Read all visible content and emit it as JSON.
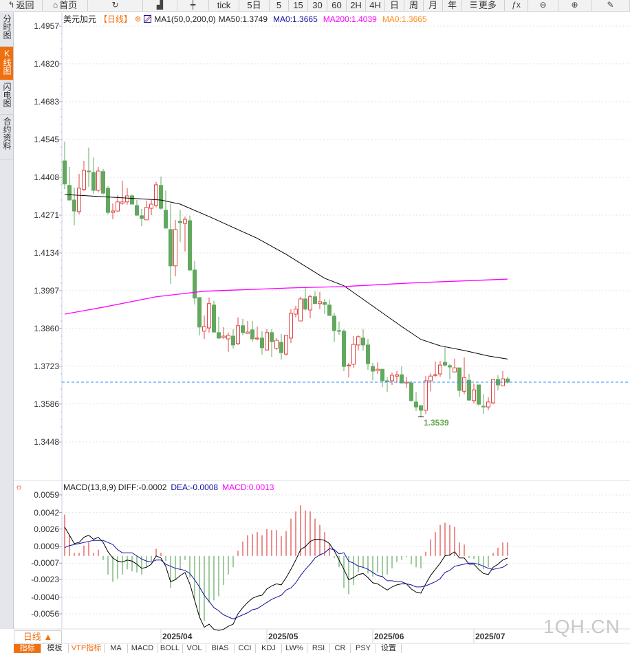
{
  "toolbar": {
    "items": [
      {
        "label": "返回",
        "icon": "back-arrow-icon",
        "glyph": "↰"
      },
      {
        "label": "首页",
        "icon": "home-icon",
        "glyph": "⌂"
      },
      {
        "label": "",
        "icon": "refresh-icon",
        "glyph": "↻"
      },
      {
        "label": "",
        "icon": "bar-chart-icon",
        "glyph": "▟"
      },
      {
        "label": "",
        "icon": "candlestick-icon",
        "glyph": "┿"
      },
      {
        "label": "tick",
        "icon": "",
        "glyph": ""
      },
      {
        "label": "5日",
        "icon": "",
        "glyph": ""
      },
      {
        "label": "5",
        "icon": "",
        "glyph": ""
      },
      {
        "label": "15",
        "icon": "",
        "glyph": ""
      },
      {
        "label": "30",
        "icon": "",
        "glyph": ""
      },
      {
        "label": "60",
        "icon": "",
        "glyph": ""
      },
      {
        "label": "2H",
        "icon": "",
        "glyph": ""
      },
      {
        "label": "4H",
        "icon": "",
        "glyph": ""
      },
      {
        "label": "日",
        "icon": "",
        "glyph": ""
      },
      {
        "label": "周",
        "icon": "",
        "glyph": ""
      },
      {
        "label": "月",
        "icon": "",
        "glyph": ""
      },
      {
        "label": "年",
        "icon": "",
        "glyph": ""
      },
      {
        "label": "更多",
        "icon": "menu-icon",
        "glyph": "☰"
      },
      {
        "label": "",
        "icon": "function-icon",
        "glyph": "ƒx"
      },
      {
        "label": "",
        "icon": "zoom-out-icon",
        "glyph": "⊖"
      },
      {
        "label": "",
        "icon": "zoom-in-icon",
        "glyph": "⊕"
      },
      {
        "label": "",
        "icon": "pen-icon",
        "glyph": "✎"
      }
    ]
  },
  "sidebar": {
    "items": [
      {
        "label": "分时图",
        "active": false
      },
      {
        "label": "K线图",
        "active": true
      },
      {
        "label": "闪电图",
        "active": false
      },
      {
        "label": "合约资料",
        "active": false
      }
    ]
  },
  "legend": {
    "symbol": "美元加元",
    "period": "【日线】",
    "toggle_glyph": "⊕",
    "indicator": "MA1(50,0,200,0)",
    "ma50": "MA50:1.3749",
    "ma0a": "MA0:1.3665",
    "ma200": "MA200:1.4039",
    "ma0b": "MA0:1.3665"
  },
  "macd_legend": {
    "name": "MACD(13,8,9)",
    "diff": "DIFF:-0.0002",
    "dea": "DEA:-0.0008",
    "macd": "MACD:0.0013"
  },
  "colors": {
    "up": "#e04444",
    "down": "#62a85e",
    "ma50": "#000000",
    "ma200": "#ff00ff",
    "ma0": "#1e90ff",
    "dea": "#1010a0",
    "macd_label": "#ff00ff",
    "accent": "#f07010"
  },
  "period_selector": "日线 ▲",
  "watermark": "1QH.CN",
  "bottom_tabs": [
    "指标",
    "模板",
    "VTP指标",
    "MA",
    "MACD",
    "BOLL",
    "VOL",
    "BIAS",
    "CCI",
    "KDJ",
    "LW%",
    "RSI",
    "CR",
    "PSY",
    "设置"
  ],
  "chart_data": [
    {
      "type": "candlestick",
      "title": "美元加元 日线",
      "y_ticks": [
        "1.4957",
        "1.4820",
        "1.4683",
        "1.4545",
        "1.4408",
        "1.4271",
        "1.4134",
        "1.3997",
        "1.3860",
        "1.3723",
        "1.3586",
        "1.3448"
      ],
      "ylim": [
        1.3448,
        1.4957
      ],
      "x_labels": [
        {
          "index": 20,
          "label": "2025/04"
        },
        {
          "index": 42,
          "label": "2025/05"
        },
        {
          "index": 64,
          "label": "2025/06"
        },
        {
          "index": 85,
          "label": "2025/07"
        }
      ],
      "low_marker": {
        "index": 74,
        "value": "1.3539"
      },
      "ma0_line": 1.3665,
      "ohlc": [
        [
          1.4468,
          1.4538,
          1.4366,
          1.4384
        ],
        [
          1.4379,
          1.4446,
          1.4324,
          1.4326
        ],
        [
          1.4326,
          1.4371,
          1.4234,
          1.4286
        ],
        [
          1.4284,
          1.4421,
          1.4274,
          1.4369
        ],
        [
          1.4364,
          1.4468,
          1.4359,
          1.4434
        ],
        [
          1.4431,
          1.4516,
          1.4374,
          1.4429
        ],
        [
          1.4426,
          1.4481,
          1.4349,
          1.4361
        ],
        [
          1.4361,
          1.4446,
          1.4354,
          1.4431
        ],
        [
          1.4429,
          1.4439,
          1.4346,
          1.4351
        ],
        [
          1.4369,
          1.4376,
          1.4274,
          1.4281
        ],
        [
          1.4281,
          1.4314,
          1.4256,
          1.4286
        ],
        [
          1.4286,
          1.4344,
          1.4284,
          1.4319
        ],
        [
          1.4314,
          1.4396,
          1.4309,
          1.4319
        ],
        [
          1.4319,
          1.4369,
          1.4309,
          1.4341
        ],
        [
          1.4341,
          1.4346,
          1.4311,
          1.4311
        ],
        [
          1.4306,
          1.4326,
          1.4269,
          1.4271
        ],
        [
          1.4269,
          1.4294,
          1.4231,
          1.4259
        ],
        [
          1.4254,
          1.4324,
          1.4254,
          1.4299
        ],
        [
          1.4296,
          1.4326,
          1.4271,
          1.4311
        ],
        [
          1.4306,
          1.4391,
          1.4299,
          1.4381
        ],
        [
          1.4379,
          1.4411,
          1.4291,
          1.4296
        ],
        [
          1.4289,
          1.4361,
          1.4224,
          1.4224
        ],
        [
          1.4219,
          1.4314,
          1.4022,
          1.4087
        ],
        [
          1.4087,
          1.4254,
          1.4049,
          1.4219
        ],
        [
          1.4249,
          1.4291,
          1.4174,
          1.4244
        ],
        [
          1.4241,
          1.4266,
          1.4139,
          1.4256
        ],
        [
          1.4251,
          1.4269,
          1.4069,
          1.4072
        ],
        [
          1.4072,
          1.4104,
          1.3947,
          1.397
        ],
        [
          1.3972,
          1.3972,
          1.3835,
          1.3865
        ],
        [
          1.385,
          1.3907,
          1.3822,
          1.3867
        ],
        [
          1.3862,
          1.3972,
          1.3845,
          1.395
        ],
        [
          1.3945,
          1.396,
          1.3845,
          1.3847
        ],
        [
          1.3845,
          1.3902,
          1.3822,
          1.3825
        ],
        [
          1.3827,
          1.3865,
          1.3822,
          1.3832
        ],
        [
          1.3822,
          1.3845,
          1.3775,
          1.3835
        ],
        [
          1.3832,
          1.3857,
          1.3787,
          1.38
        ],
        [
          1.3805,
          1.39,
          1.38,
          1.387
        ],
        [
          1.387,
          1.3895,
          1.3835,
          1.3845
        ],
        [
          1.3842,
          1.3887,
          1.3842,
          1.3847
        ],
        [
          1.3855,
          1.3887,
          1.3812,
          1.3822
        ],
        [
          1.3822,
          1.3867,
          1.3817,
          1.3825
        ],
        [
          1.3825,
          1.385,
          1.3765,
          1.379
        ],
        [
          1.3782,
          1.3857,
          1.378,
          1.3845
        ],
        [
          1.3845,
          1.3857,
          1.3757,
          1.3812
        ],
        [
          1.3787,
          1.3825,
          1.3782,
          1.3817
        ],
        [
          1.381,
          1.384,
          1.3747,
          1.3772
        ],
        [
          1.3767,
          1.3835,
          1.3762,
          1.3835
        ],
        [
          1.3825,
          1.393,
          1.3807,
          1.3915
        ],
        [
          1.3912,
          1.3942,
          1.39,
          1.393
        ],
        [
          1.3887,
          1.3975,
          1.3887,
          1.3967
        ],
        [
          1.3967,
          1.4012,
          1.3925,
          1.393
        ],
        [
          1.3927,
          1.3982,
          1.3897,
          1.3975
        ],
        [
          1.3975,
          1.3995,
          1.395,
          1.395
        ],
        [
          1.395,
          1.3992,
          1.393,
          1.3957
        ],
        [
          1.3955,
          1.3967,
          1.3912,
          1.3947
        ],
        [
          1.3945,
          1.3965,
          1.3905,
          1.3907
        ],
        [
          1.3905,
          1.3917,
          1.381,
          1.3852
        ],
        [
          1.3852,
          1.3885,
          1.3837,
          1.385
        ],
        [
          1.385,
          1.3857,
          1.3705,
          1.3722
        ],
        [
          1.3725,
          1.3735,
          1.3682,
          1.3727
        ],
        [
          1.373,
          1.3832,
          1.3717,
          1.3802
        ],
        [
          1.38,
          1.3835,
          1.378,
          1.383
        ],
        [
          1.3825,
          1.3857,
          1.378,
          1.38
        ],
        [
          1.38,
          1.3822,
          1.371,
          1.3732
        ],
        [
          1.3722,
          1.3735,
          1.3672,
          1.3705
        ],
        [
          1.3707,
          1.3737,
          1.3695,
          1.3712
        ],
        [
          1.3712,
          1.3712,
          1.3647,
          1.367
        ],
        [
          1.367,
          1.3682,
          1.363,
          1.3667
        ],
        [
          1.367,
          1.37,
          1.3655,
          1.369
        ],
        [
          1.3687,
          1.3705,
          1.3662,
          1.3692
        ],
        [
          1.3692,
          1.3722,
          1.3662,
          1.3662
        ],
        [
          1.3662,
          1.3685,
          1.3645,
          1.3665
        ],
        [
          1.3662,
          1.367,
          1.3595,
          1.3598
        ],
        [
          1.3593,
          1.363,
          1.356,
          1.3575
        ],
        [
          1.358,
          1.358,
          1.3539,
          1.3563
        ],
        [
          1.3563,
          1.3687,
          1.355,
          1.367
        ],
        [
          1.367,
          1.3697,
          1.3632,
          1.3687
        ],
        [
          1.369,
          1.374,
          1.3685,
          1.3692
        ],
        [
          1.3695,
          1.3742,
          1.3685,
          1.3727
        ],
        [
          1.3737,
          1.3792,
          1.3722,
          1.3727
        ],
        [
          1.3725,
          1.3732,
          1.3675,
          1.372
        ],
        [
          1.3702,
          1.375,
          1.3702,
          1.3717
        ],
        [
          1.3717,
          1.3717,
          1.3612,
          1.3635
        ],
        [
          1.3632,
          1.3755,
          1.3622,
          1.3682
        ],
        [
          1.3672,
          1.3695,
          1.3598,
          1.36
        ],
        [
          1.3598,
          1.366,
          1.3588,
          1.3637
        ],
        [
          1.3655,
          1.3655,
          1.358,
          1.3585
        ],
        [
          1.3578,
          1.3622,
          1.355,
          1.3575
        ],
        [
          1.3575,
          1.361,
          1.3563,
          1.3593
        ],
        [
          1.359,
          1.3675,
          1.3585,
          1.3675
        ],
        [
          1.3675,
          1.369,
          1.3635,
          1.3655
        ],
        [
          1.3652,
          1.3705,
          1.365,
          1.3677
        ],
        [
          1.3677,
          1.3685,
          1.366,
          1.3665
        ]
      ],
      "ma50": [
        [
          0,
          1.4346
        ],
        [
          20,
          1.4326
        ],
        [
          24,
          1.4311
        ],
        [
          30,
          1.4266
        ],
        [
          40,
          1.4187
        ],
        [
          46,
          1.4129
        ],
        [
          54,
          1.4042
        ],
        [
          58,
          1.4015
        ],
        [
          70,
          1.3867
        ],
        [
          74,
          1.382
        ],
        [
          78,
          1.3797
        ],
        [
          83,
          1.378
        ],
        [
          88,
          1.376
        ],
        [
          92,
          1.3749
        ]
      ],
      "ma200": [
        [
          0,
          1.3912
        ],
        [
          8,
          1.3937
        ],
        [
          19,
          1.3975
        ],
        [
          29,
          1.3995
        ],
        [
          47,
          1.4007
        ],
        [
          58,
          1.4012
        ],
        [
          72,
          1.4025
        ],
        [
          92,
          1.4039
        ]
      ]
    },
    {
      "type": "macd",
      "y_ticks": [
        "0.0059",
        "0.0042",
        "0.0026",
        "0.0009",
        "-0.0007",
        "-0.0023",
        "-0.0040",
        "-0.0056"
      ],
      "ylim": [
        -0.0056,
        0.0059
      ],
      "diff": [
        0.0028,
        0.002,
        0.0012,
        0.0013,
        0.0018,
        0.002,
        0.0016,
        0.0018,
        0.0013,
        0.0004,
        -0.0002,
        -0.0005,
        -0.0006,
        -0.0004,
        -0.0005,
        -0.0008,
        -0.0012,
        -0.0011,
        -0.0008,
        0.0,
        -0.0002,
        -0.001,
        -0.0025,
        -0.0023,
        -0.0019,
        -0.0016,
        -0.0027,
        -0.0043,
        -0.0059,
        -0.0069,
        -0.0066,
        -0.0071,
        -0.0072,
        -0.0071,
        -0.0068,
        -0.0066,
        -0.0056,
        -0.005,
        -0.0045,
        -0.0041,
        -0.0039,
        -0.0038,
        -0.0032,
        -0.0029,
        -0.0027,
        -0.0028,
        -0.0021,
        -0.0013,
        -0.0004,
        0.0006,
        0.0009,
        0.0014,
        0.0016,
        0.0016,
        0.0015,
        0.0012,
        0.0005,
        -0.0004,
        -0.0013,
        -0.0023,
        -0.0021,
        -0.0018,
        -0.0017,
        -0.0021,
        -0.0026,
        -0.0027,
        -0.003,
        -0.0033,
        -0.003,
        -0.0028,
        -0.0027,
        -0.0027,
        -0.0032,
        -0.0035,
        -0.0036,
        -0.0027,
        -0.0019,
        -0.0013,
        -0.0007,
        0.0,
        0.0001,
        0.0004,
        -0.0002,
        -0.0002,
        -0.0008,
        -0.0008,
        -0.0013,
        -0.0017,
        -0.0018,
        -0.0011,
        -0.0008,
        -0.0004,
        -0.0002
      ],
      "dea": [
        0.0008,
        0.001,
        0.0011,
        0.0012,
        0.0013,
        0.0014,
        0.0015,
        0.0015,
        0.0015,
        0.0013,
        0.0011,
        0.0006,
        0.0003,
        0.0003,
        0.0003,
        0.0,
        -0.0003,
        -0.0005,
        -0.0006,
        -0.0004,
        -0.0004,
        -0.0008,
        -0.001,
        -0.0012,
        -0.0013,
        -0.0014,
        -0.0017,
        -0.0023,
        -0.003,
        -0.0038,
        -0.0044,
        -0.005,
        -0.0053,
        -0.0057,
        -0.0059,
        -0.0061,
        -0.0059,
        -0.0057,
        -0.0055,
        -0.0052,
        -0.0051,
        -0.0048,
        -0.0045,
        -0.0042,
        -0.004,
        -0.0038,
        -0.0033,
        -0.0031,
        -0.0026,
        -0.0019,
        -0.0013,
        -0.0008,
        -0.0002,
        0.0001,
        0.0003,
        0.0007,
        0.0006,
        0.0002,
        0.0003,
        -0.0005,
        -0.0007,
        -0.001,
        -0.0011,
        -0.0013,
        -0.0016,
        -0.0019,
        -0.002,
        -0.0024,
        -0.0024,
        -0.0025,
        -0.0025,
        -0.0027,
        -0.0028,
        -0.003,
        -0.003,
        -0.0029,
        -0.0027,
        -0.0025,
        -0.0022,
        -0.0016,
        -0.0014,
        -0.001,
        -0.0009,
        -0.0008,
        -0.0007,
        -0.0007,
        -0.0008,
        -0.001,
        -0.0012,
        -0.0013,
        -0.0012,
        -0.0011,
        -0.0008
      ],
      "macd": [
        0.004,
        0.002,
        0.0003,
        0.0003,
        0.001,
        0.0013,
        0.0003,
        0.0006,
        -0.0004,
        -0.0018,
        -0.0025,
        -0.0022,
        -0.0018,
        -0.0013,
        -0.0015,
        -0.0016,
        -0.0018,
        -0.0011,
        -0.0005,
        0.0007,
        0.0003,
        -0.0005,
        -0.0031,
        -0.0023,
        -0.0013,
        -0.0004,
        -0.0021,
        -0.0041,
        -0.0059,
        -0.0063,
        -0.0045,
        -0.0043,
        -0.0039,
        -0.0028,
        -0.0018,
        -0.0011,
        0.0005,
        0.0014,
        0.002,
        0.0021,
        0.0023,
        0.002,
        0.0026,
        0.0025,
        0.0025,
        0.0019,
        0.0024,
        0.0036,
        0.0043,
        0.0049,
        0.0044,
        0.0043,
        0.0036,
        0.003,
        0.0023,
        0.0011,
        -0.0002,
        -0.0011,
        -0.0031,
        -0.0037,
        -0.0028,
        -0.0016,
        -0.0012,
        -0.0017,
        -0.002,
        -0.0016,
        -0.002,
        -0.0018,
        -0.0012,
        -0.0006,
        -0.0004,
        -0.0001,
        -0.0008,
        -0.0011,
        -0.0012,
        0.0004,
        0.0016,
        0.0023,
        0.003,
        0.0032,
        0.003,
        0.0028,
        0.0013,
        0.0011,
        -0.0002,
        -0.0003,
        -0.001,
        -0.0013,
        -0.0011,
        0.0003,
        0.0008,
        0.0013,
        0.0013
      ]
    }
  ]
}
